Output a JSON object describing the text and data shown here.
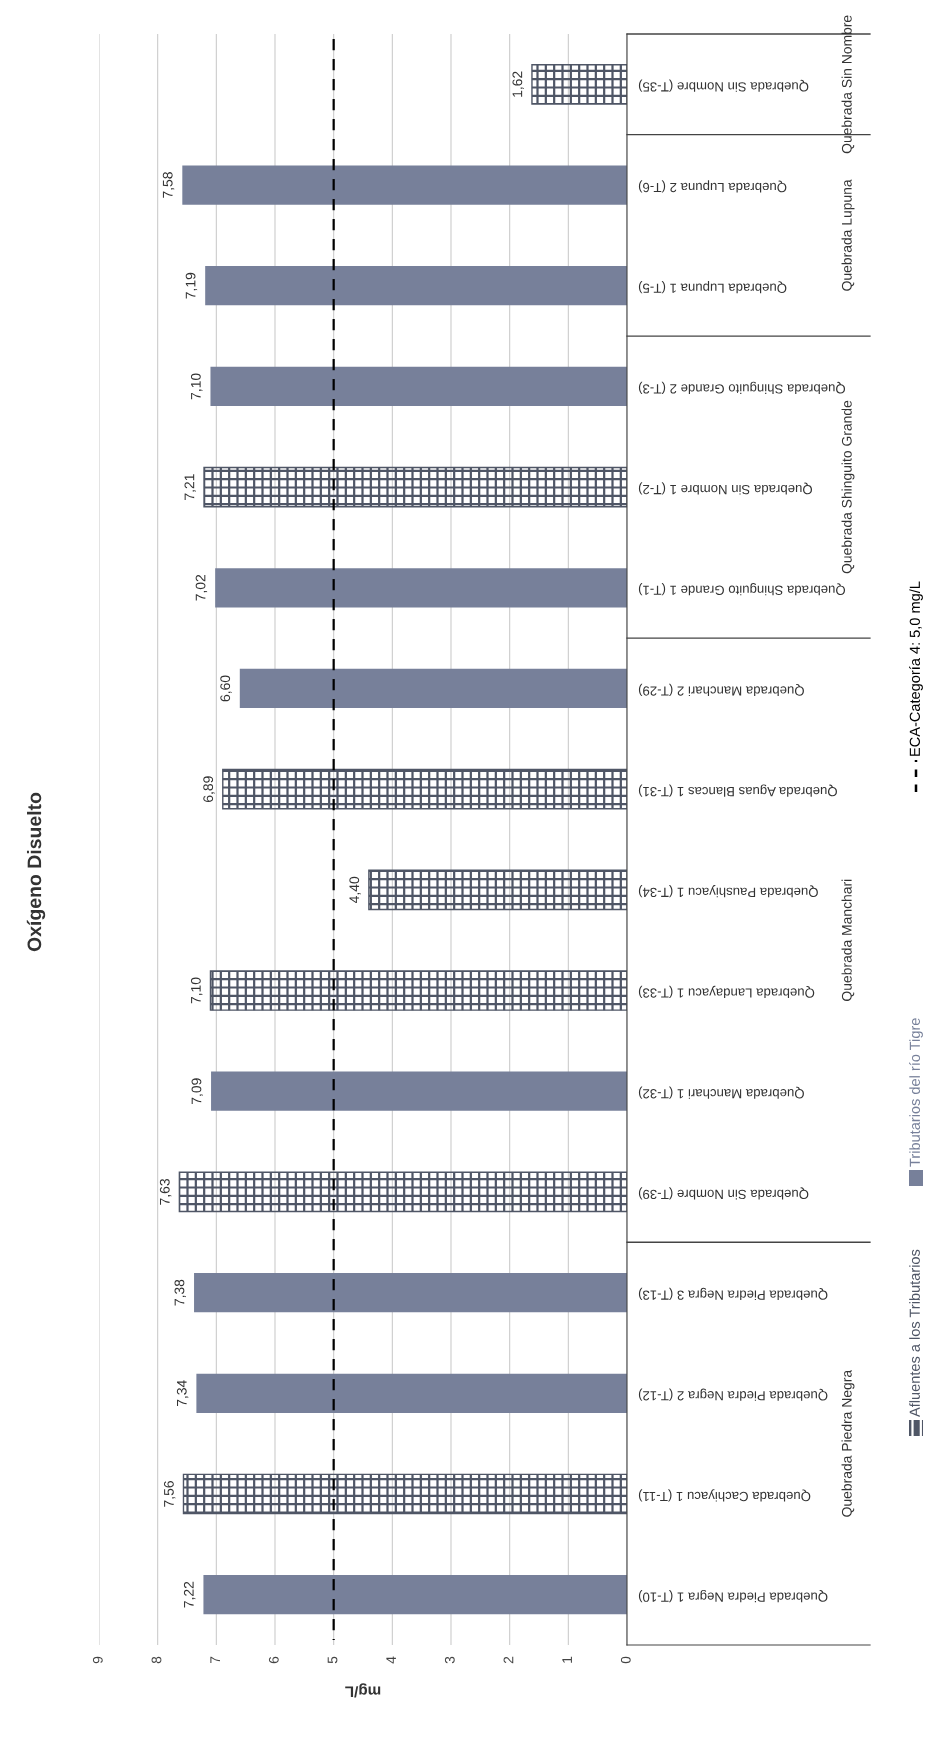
{
  "chart_data": {
    "type": "bar",
    "orientation": "horizontal",
    "title": "Oxígeno Disuelto",
    "xlabel": "mg/L",
    "categories": [
      "Quebrada Sin Nombre (T-35)",
      "Quebrada Lupuna 2 (T-6)",
      "Quebrada Lupuna 1 (T-5)",
      "Quebrada Shinguito Grande 2 (T-3)",
      "Quebrada Sin Nombre 1 (T-2)",
      "Quebrada Shinguito Grande 1 (T-1)",
      "Quebrada Manchari 2 (T-29)",
      "Quebrada Aguas Blancas 1 (T-31)",
      "Quebrada Paushiyacu 1 (T-34)",
      "Quebrada Landayacu 1 (T-33)",
      "Quebrada Manchari 1 (T-32)",
      "Quebrada Sin Nombre (T-39)",
      "Quebrada Piedra Negra 3 (T-13)",
      "Quebrada Piedra Negra 2 (T-12)",
      "Quebrada Cachiyacu 1 (T-11)",
      "Quebrada Piedra Negra 1 (T-10)"
    ],
    "series": [
      {
        "name": "Afluentes a los Tributarios",
        "color": "#4f5666",
        "values": [
          1.62,
          null,
          null,
          null,
          7.21,
          null,
          null,
          6.89,
          4.4,
          7.1,
          null,
          7.63,
          null,
          null,
          7.56,
          null
        ],
        "value_labels": [
          "1,62",
          null,
          null,
          null,
          "7,21",
          null,
          null,
          "6,89",
          "4,40",
          "7,10",
          null,
          "7,63",
          null,
          null,
          "7,56",
          null
        ]
      },
      {
        "name": "Tributarios del río Tigre",
        "color": "#77809a",
        "values": [
          null,
          7.58,
          7.19,
          7.1,
          null,
          7.02,
          6.6,
          null,
          null,
          null,
          7.09,
          null,
          7.38,
          7.34,
          null,
          7.22
        ],
        "value_labels": [
          null,
          "7,58",
          "7,19",
          "7,10",
          null,
          "7,02",
          "6,60",
          null,
          null,
          null,
          "7,09",
          null,
          "7,38",
          "7,34",
          null,
          "7,22"
        ]
      }
    ],
    "xlim": [
      9,
      0
    ],
    "xticks": [
      0,
      1,
      2,
      3,
      4,
      5,
      6,
      7,
      8,
      9
    ],
    "grid": "x",
    "legend": "right",
    "ref_lines": [
      {
        "axis": "x",
        "value": 5.0,
        "label": "ECA-Categoría 4: 5,0 mg/L",
        "color": "#000000",
        "line_style": "dashed"
      }
    ],
    "annotations": [
      "Quebrada Sin Nombre",
      "Quebrada Lupuna",
      "Quebrada Shinguito Grande",
      "Quebrada Manchari",
      "Quebrada Piedra Negra"
    ]
  }
}
